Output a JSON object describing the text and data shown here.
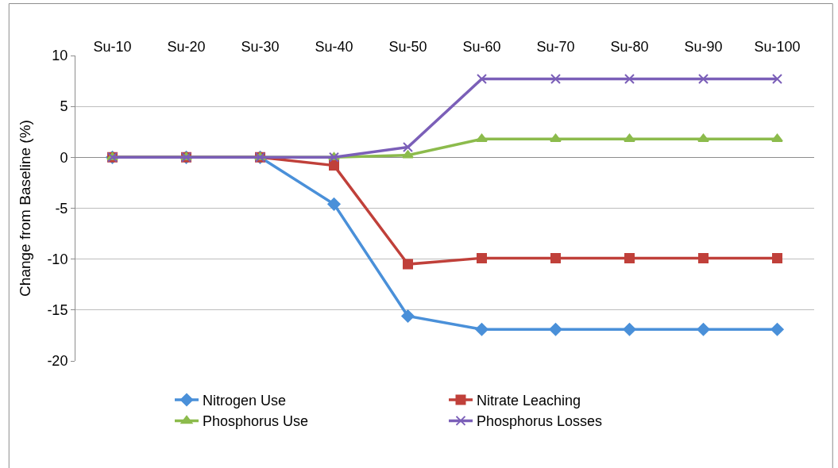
{
  "chart_data": {
    "type": "line",
    "ylabel": "Change from Baseline (%)",
    "categories": [
      "Su-10",
      "Su-20",
      "Su-30",
      "Su-40",
      "Su-50",
      "Su-60",
      "Su-70",
      "Su-80",
      "Su-90",
      "Su-100"
    ],
    "series": [
      {
        "name": "Nitrogen Use",
        "color": "#4a90d9",
        "marker": "diamond",
        "values": [
          0,
          0,
          0,
          -4.6,
          -15.6,
          -16.9,
          -16.9,
          -16.9,
          -16.9,
          -16.9
        ]
      },
      {
        "name": "Nitrate Leaching",
        "color": "#c0403a",
        "marker": "square",
        "values": [
          0,
          0,
          0,
          -0.8,
          -10.5,
          -9.9,
          -9.9,
          -9.9,
          -9.9,
          -9.9
        ]
      },
      {
        "name": "Phosphorus Use",
        "color": "#8cbb4c",
        "marker": "triangle",
        "values": [
          0,
          0,
          0,
          0,
          0.2,
          1.8,
          1.8,
          1.8,
          1.8,
          1.8
        ]
      },
      {
        "name": "Phosphorus Losses",
        "color": "#7b5fb8",
        "marker": "cross",
        "values": [
          0,
          0,
          0,
          0,
          1.0,
          7.7,
          7.7,
          7.7,
          7.7,
          7.7
        ]
      }
    ],
    "ylim": [
      -20,
      10
    ],
    "yticks": [
      -20,
      -15,
      -10,
      -5,
      0,
      5,
      10
    ],
    "grid": "y",
    "legend": "bottom"
  }
}
